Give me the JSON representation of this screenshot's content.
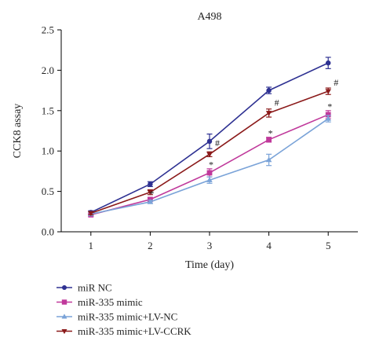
{
  "chart_data": {
    "type": "line",
    "title": "A498",
    "xlabel": "Time (day)",
    "ylabel": "CCK8 assay",
    "x": [
      1,
      2,
      3,
      4,
      5
    ],
    "xlim": [
      0.5,
      5.5
    ],
    "ylim": [
      0.0,
      2.5
    ],
    "yticks": [
      "0.0",
      "0.5",
      "1.0",
      "1.5",
      "2.0",
      "2.5"
    ],
    "xticks": [
      "1",
      "2",
      "3",
      "4",
      "5"
    ],
    "grid": false,
    "legend_position": "bottom-left, below plot",
    "series": [
      {
        "name": "miR NC",
        "color": "#2e3192",
        "marker": "circle",
        "values": [
          0.24,
          0.59,
          1.12,
          1.75,
          2.09
        ],
        "errors": [
          0.02,
          0.03,
          0.09,
          0.04,
          0.07
        ]
      },
      {
        "name": "miR-335 mimic",
        "color": "#c0399b",
        "marker": "square",
        "values": [
          0.21,
          0.4,
          0.73,
          1.14,
          1.45
        ],
        "errors": [
          0.02,
          0.02,
          0.05,
          0.03,
          0.05
        ]
      },
      {
        "name": "miR-335 mimic+LV-NC",
        "color": "#7aa3d8",
        "marker": "triangle-up",
        "values": [
          0.22,
          0.37,
          0.64,
          0.89,
          1.4
        ],
        "errors": [
          0.02,
          0.02,
          0.04,
          0.07,
          0.04
        ]
      },
      {
        "name": "miR-335 mimic+LV-CCRK",
        "color": "#8b1a1a",
        "marker": "triangle-down",
        "values": [
          0.23,
          0.49,
          0.96,
          1.47,
          1.74
        ],
        "errors": [
          0.02,
          0.03,
          0.03,
          0.05,
          0.04
        ]
      }
    ],
    "annotations": [
      {
        "text": "*",
        "x": 2,
        "y": 0.47
      },
      {
        "text": "*",
        "x": 3,
        "y": 0.83
      },
      {
        "text": "#",
        "x": 3,
        "y": 1.1
      },
      {
        "text": "*",
        "x": 4,
        "y": 1.22
      },
      {
        "text": "#",
        "x": 4,
        "y": 1.6
      },
      {
        "text": "*",
        "x": 5,
        "y": 1.55
      },
      {
        "text": "#",
        "x": 5,
        "y": 1.85
      }
    ]
  }
}
